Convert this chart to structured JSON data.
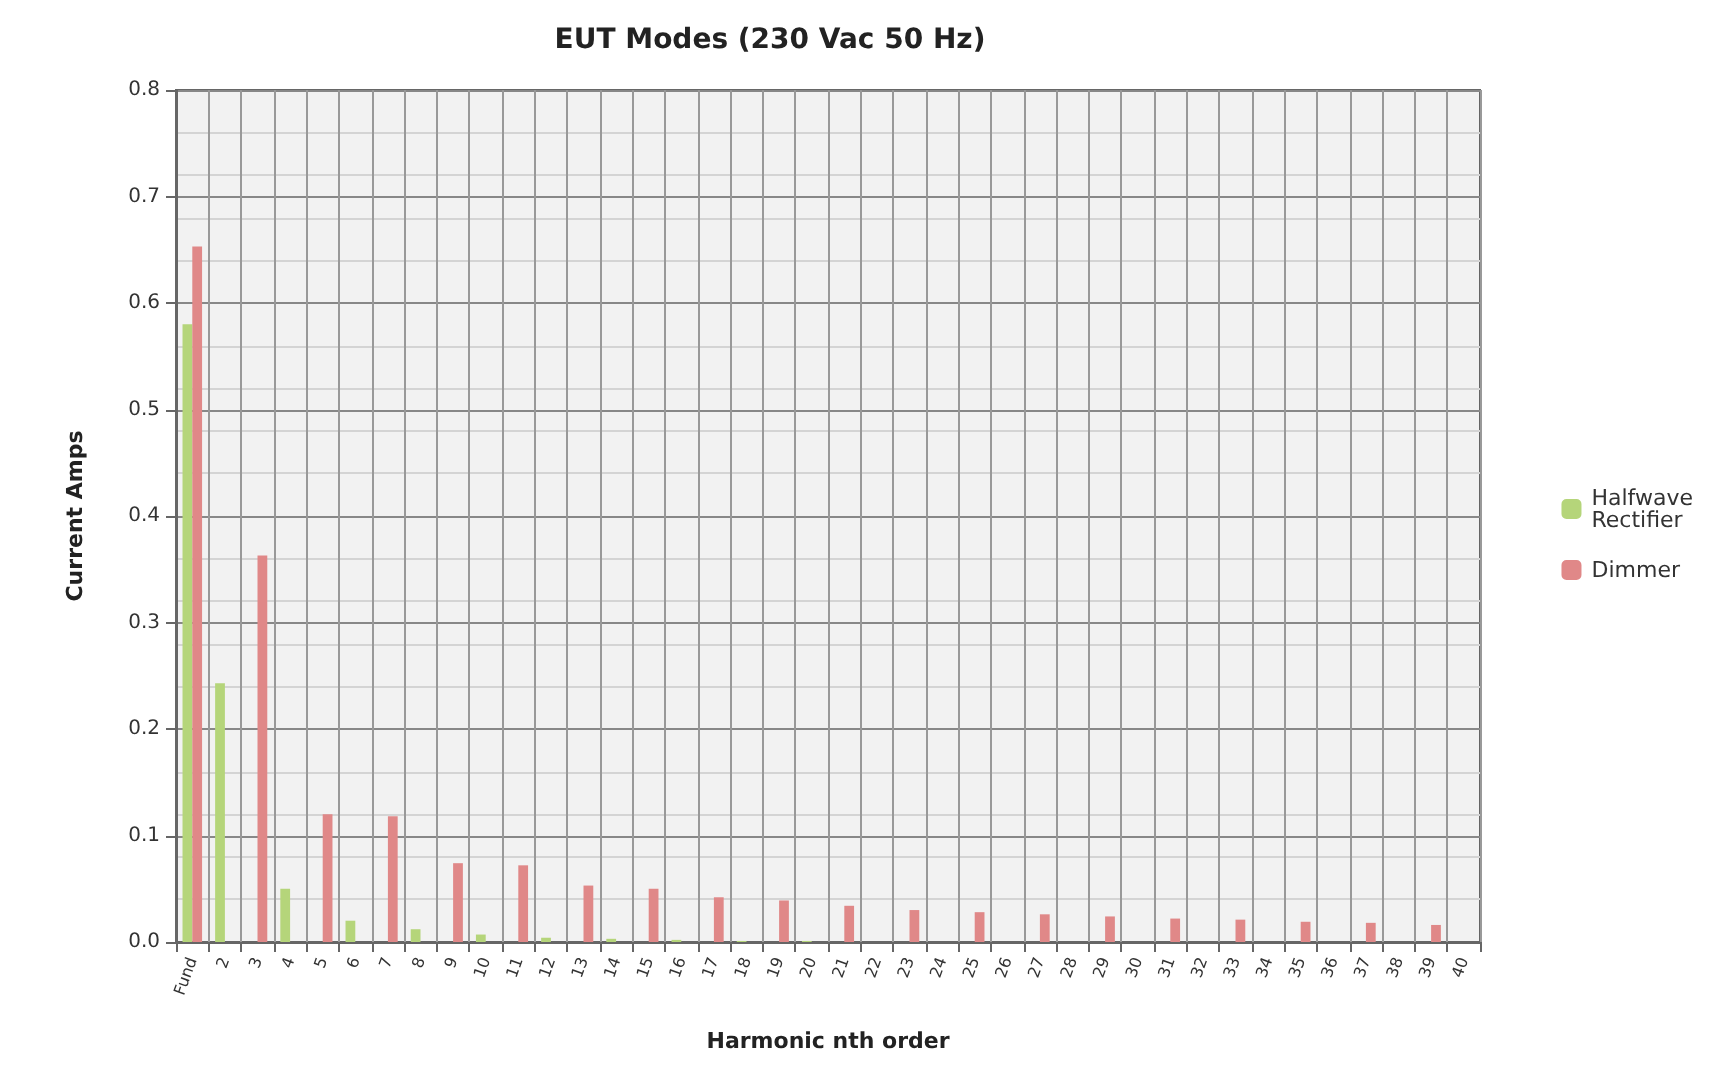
{
  "chart_data": {
    "type": "bar",
    "title": "EUT Modes (230 Vac 50 Hz)",
    "xlabel": "Harmonic nth order",
    "ylabel": "Current Amps",
    "categories": [
      "Fund",
      "2",
      "3",
      "4",
      "5",
      "6",
      "7",
      "8",
      "9",
      "10",
      "11",
      "12",
      "13",
      "14",
      "15",
      "16",
      "17",
      "18",
      "19",
      "20",
      "21",
      "22",
      "23",
      "24",
      "25",
      "26",
      "27",
      "28",
      "29",
      "30",
      "31",
      "32",
      "33",
      "34",
      "35",
      "36",
      "37",
      "38",
      "39",
      "40"
    ],
    "series": [
      {
        "name": "Halfwave Rectifier",
        "color": "#b5d57a",
        "values": [
          0.58,
          0.243,
          0,
          0.05,
          0,
          0.02,
          0,
          0.012,
          0,
          0.007,
          0,
          0.004,
          0,
          0.003,
          0,
          0.002,
          0,
          0.001,
          0,
          0.001,
          0,
          0,
          0,
          0,
          0,
          0,
          0,
          0,
          0,
          0,
          0,
          0,
          0,
          0,
          0,
          0,
          0,
          0,
          0,
          0
        ]
      },
      {
        "name": "Dimmer",
        "color": "#e08888",
        "values": [
          0.653,
          0,
          0.363,
          0,
          0.12,
          0,
          0.118,
          0,
          0.074,
          0,
          0.072,
          0,
          0.053,
          0,
          0.05,
          0,
          0.042,
          0,
          0.039,
          0,
          0.034,
          0,
          0.03,
          0,
          0.028,
          0,
          0.026,
          0,
          0.024,
          0,
          0.022,
          0,
          0.021,
          0,
          0.019,
          0,
          0.018,
          0,
          0.016,
          0
        ]
      }
    ],
    "ylim": [
      0,
      0.8
    ],
    "yticks": [
      {
        "value": 0,
        "label": "0.0"
      },
      0.1,
      0.2,
      0.3,
      0.4,
      0.5,
      0.6,
      0.7,
      0.8
    ],
    "grid": true,
    "legend": "right"
  }
}
